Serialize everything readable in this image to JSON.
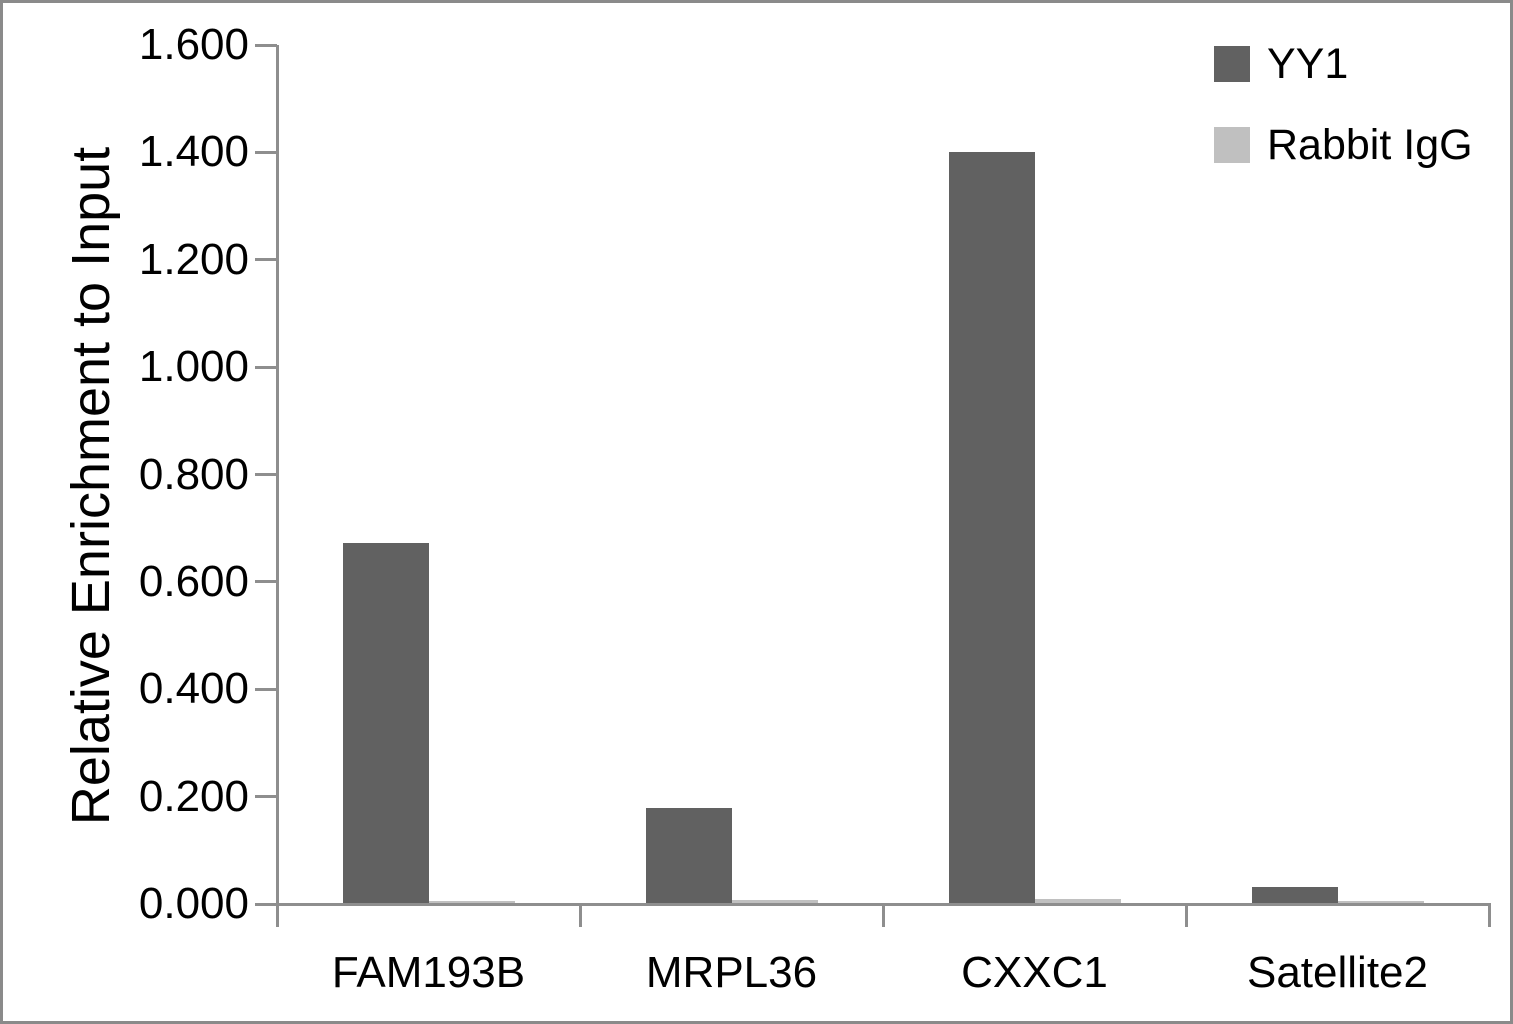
{
  "figure": {
    "background": "#ffffff",
    "border_color": "#8a8a8a",
    "axis_color": "#8e8e8e",
    "text_color": "#000000"
  },
  "chart_data": {
    "type": "bar",
    "title": "",
    "xlabel": "",
    "ylabel": "Relative Enrichment to Input",
    "categories": [
      "FAM193B",
      "MRPL36",
      "CXXC1",
      "Satellite2"
    ],
    "series": [
      {
        "name": "YY1",
        "color": "#616161",
        "values": [
          0.672,
          0.179,
          1.4,
          0.031
        ]
      },
      {
        "name": "Rabbit IgG",
        "color": "#c0c0c0",
        "values": [
          0.005,
          0.008,
          0.01,
          0.006
        ]
      }
    ],
    "ylim": [
      0.0,
      1.6
    ],
    "y_ticks": [
      {
        "value": 0.0,
        "label": "0.000"
      },
      {
        "value": 0.2,
        "label": "0.200"
      },
      {
        "value": 0.4,
        "label": "0.400"
      },
      {
        "value": 0.6,
        "label": "0.600"
      },
      {
        "value": 0.8,
        "label": "0.800"
      },
      {
        "value": 1.0,
        "label": "1.000"
      },
      {
        "value": 1.2,
        "label": "1.200"
      },
      {
        "value": 1.4,
        "label": "1.400"
      },
      {
        "value": 1.6,
        "label": "1.600"
      }
    ],
    "grid": false,
    "legend_position": "top-right"
  }
}
